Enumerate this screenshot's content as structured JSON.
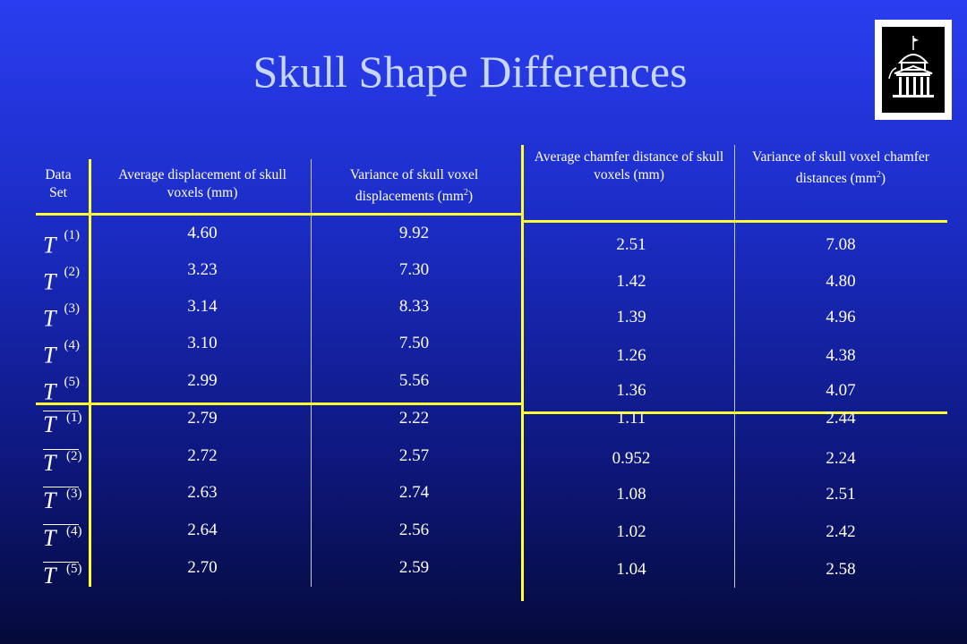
{
  "title": "Skull Shape Differences",
  "logo_icon": "university-building-icon",
  "colors": {
    "accent": "#ffff33",
    "title": "#c7d6ff",
    "background": "#1b2cc4"
  },
  "table": {
    "headers": {
      "data_set": "Data Set",
      "avg_disp": "Average displacement of skull voxels (mm)",
      "var_disp": "Variance of skull voxel displacements (mm",
      "avg_chamfer": "Average chamfer distance of skull voxels (mm)",
      "var_chamfer": "Variance of skull voxel chamfer distances (mm",
      "unit_sup": "2",
      "unit_close": ")"
    },
    "rows": [
      {
        "sym": "T",
        "sup": "(1)",
        "bar": false,
        "avg_disp": "4.60",
        "var_disp": "9.92",
        "avg_chamfer": "2.51",
        "var_chamfer": "7.08"
      },
      {
        "sym": "T",
        "sup": "(2)",
        "bar": false,
        "avg_disp": "3.23",
        "var_disp": "7.30",
        "avg_chamfer": "1.42",
        "var_chamfer": "4.80"
      },
      {
        "sym": "T",
        "sup": "(3)",
        "bar": false,
        "avg_disp": "3.14",
        "var_disp": "8.33",
        "avg_chamfer": "1.39",
        "var_chamfer": "4.96"
      },
      {
        "sym": "T",
        "sup": "(4)",
        "bar": false,
        "avg_disp": "3.10",
        "var_disp": "7.50",
        "avg_chamfer": "1.26",
        "var_chamfer": "4.38"
      },
      {
        "sym": "T",
        "sup": "(5)",
        "bar": false,
        "avg_disp": "2.99",
        "var_disp": "5.56",
        "avg_chamfer": "1.36",
        "var_chamfer": "4.07"
      },
      {
        "sym": "T",
        "sup": "(1)",
        "bar": true,
        "avg_disp": "2.79",
        "var_disp": "2.22",
        "avg_chamfer": "1.11",
        "var_chamfer": "2.44"
      },
      {
        "sym": "T",
        "sup": "(2)",
        "bar": true,
        "avg_disp": "2.72",
        "var_disp": "2.57",
        "avg_chamfer": "0.952",
        "var_chamfer": "2.24"
      },
      {
        "sym": "T",
        "sup": "(3)",
        "bar": true,
        "avg_disp": "2.63",
        "var_disp": "2.74",
        "avg_chamfer": "1.08",
        "var_chamfer": "2.51"
      },
      {
        "sym": "T",
        "sup": "(4)",
        "bar": true,
        "avg_disp": "2.64",
        "var_disp": "2.56",
        "avg_chamfer": "1.02",
        "var_chamfer": "2.42"
      },
      {
        "sym": "T",
        "sup": "(5)",
        "bar": true,
        "avg_disp": "2.70",
        "var_disp": "2.59",
        "avg_chamfer": "1.04",
        "var_chamfer": "2.58"
      }
    ]
  }
}
